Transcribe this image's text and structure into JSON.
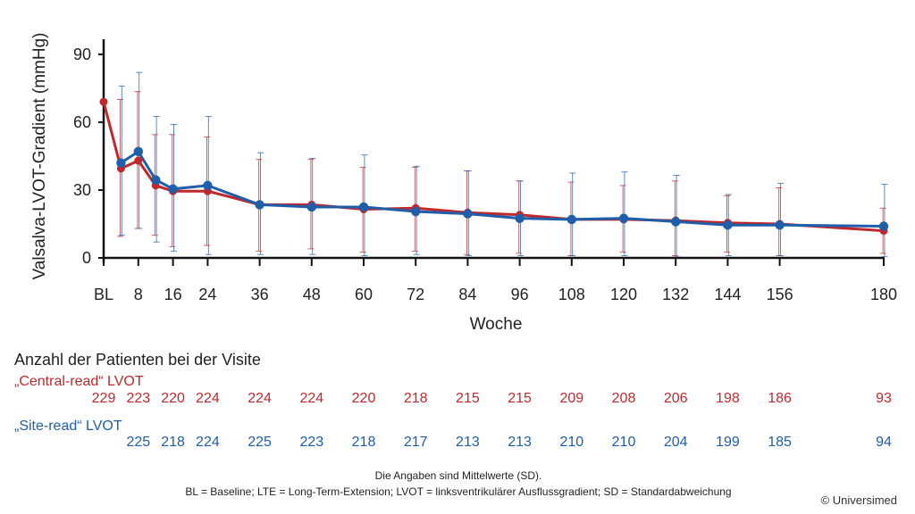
{
  "chart_data": {
    "type": "line",
    "xlabel": "Woche",
    "ylabel": "Valsalva-LVOT-Gradient (mmHg)",
    "ylim": [
      0,
      95
    ],
    "yticks": [
      0,
      30,
      60,
      90
    ],
    "xlim": [
      0,
      180
    ],
    "xticks": [
      {
        "value": 0,
        "label": "BL"
      },
      {
        "value": 8,
        "label": "8"
      },
      {
        "value": 16,
        "label": "16"
      },
      {
        "value": 24,
        "label": "24"
      },
      {
        "value": 36,
        "label": "36"
      },
      {
        "value": 48,
        "label": "48"
      },
      {
        "value": 60,
        "label": "60"
      },
      {
        "value": 72,
        "label": "72"
      },
      {
        "value": 84,
        "label": "84"
      },
      {
        "value": 96,
        "label": "96"
      },
      {
        "value": 108,
        "label": "108"
      },
      {
        "value": 120,
        "label": "120"
      },
      {
        "value": 132,
        "label": "132"
      },
      {
        "value": 144,
        "label": "144"
      },
      {
        "value": 156,
        "label": "156"
      },
      {
        "value": 180,
        "label": "180"
      }
    ],
    "grid": false,
    "series": [
      {
        "name": "„Central-read“ LVOT",
        "color": "#c0282d",
        "points": [
          {
            "x": 0,
            "y": 69,
            "lo": null,
            "hi": null
          },
          {
            "x": 4,
            "y": 39.5,
            "lo": 9.5,
            "hi": 70
          },
          {
            "x": 8,
            "y": 43,
            "lo": 13,
            "hi": 73.5
          },
          {
            "x": 12,
            "y": 32,
            "lo": 10,
            "hi": 54.5
          },
          {
            "x": 16,
            "y": 29.5,
            "lo": 5,
            "hi": 54.5
          },
          {
            "x": 24,
            "y": 29.5,
            "lo": 5.5,
            "hi": 53.5
          },
          {
            "x": 36,
            "y": 23.5,
            "lo": 3,
            "hi": 43.5
          },
          {
            "x": 48,
            "y": 23.5,
            "lo": 4,
            "hi": 43.5
          },
          {
            "x": 60,
            "y": 21.5,
            "lo": 2.5,
            "hi": 40
          },
          {
            "x": 72,
            "y": 22,
            "lo": 3,
            "hi": 40
          },
          {
            "x": 84,
            "y": 20,
            "lo": 1.5,
            "hi": 38.5
          },
          {
            "x": 96,
            "y": 19,
            "lo": 2,
            "hi": 34
          },
          {
            "x": 108,
            "y": 17,
            "lo": 1,
            "hi": 33.5
          },
          {
            "x": 120,
            "y": 17,
            "lo": 2.5,
            "hi": 32
          },
          {
            "x": 132,
            "y": 16.5,
            "lo": 1,
            "hi": 34
          },
          {
            "x": 144,
            "y": 15.5,
            "lo": 2.5,
            "hi": 27.5
          },
          {
            "x": 156,
            "y": 15,
            "lo": 1,
            "hi": 31
          },
          {
            "x": 180,
            "y": 12,
            "lo": 2,
            "hi": 22
          }
        ]
      },
      {
        "name": "„Site-read“ LVOT",
        "color": "#1f5ea8",
        "points": [
          {
            "x": 4,
            "y": 42,
            "lo": 10,
            "hi": 76
          },
          {
            "x": 8,
            "y": 47,
            "lo": 13,
            "hi": 82
          },
          {
            "x": 12,
            "y": 34.5,
            "lo": 7,
            "hi": 62.5
          },
          {
            "x": 16,
            "y": 30.5,
            "lo": 3,
            "hi": 59
          },
          {
            "x": 24,
            "y": 32,
            "lo": 1.5,
            "hi": 62.5
          },
          {
            "x": 36,
            "y": 23.5,
            "lo": 1.5,
            "hi": 46.5
          },
          {
            "x": 48,
            "y": 22.5,
            "lo": 1.5,
            "hi": 44
          },
          {
            "x": 60,
            "y": 22.5,
            "lo": 1,
            "hi": 45.5
          },
          {
            "x": 72,
            "y": 20.5,
            "lo": 1.5,
            "hi": 40.5
          },
          {
            "x": 84,
            "y": 19.5,
            "lo": 1,
            "hi": 38.5
          },
          {
            "x": 96,
            "y": 17.5,
            "lo": 1,
            "hi": 34
          },
          {
            "x": 108,
            "y": 17,
            "lo": 1,
            "hi": 37.5
          },
          {
            "x": 120,
            "y": 17.5,
            "lo": 1,
            "hi": 38
          },
          {
            "x": 132,
            "y": 16,
            "lo": 0.5,
            "hi": 36.5
          },
          {
            "x": 144,
            "y": 14.5,
            "lo": 1,
            "hi": 28
          },
          {
            "x": 156,
            "y": 14.5,
            "lo": 1,
            "hi": 33
          },
          {
            "x": 180,
            "y": 14,
            "lo": 0.5,
            "hi": 32.5
          }
        ]
      }
    ]
  },
  "patients": {
    "title": "Anzahl der Patienten bei der Visite",
    "rows": [
      {
        "label": "„Central-read“ LVOT",
        "color": "#c0282d",
        "cells": [
          {
            "x": 0,
            "v": "229"
          },
          {
            "x": 8,
            "v": "223"
          },
          {
            "x": 16,
            "v": "220"
          },
          {
            "x": 24,
            "v": "224"
          },
          {
            "x": 36,
            "v": "224"
          },
          {
            "x": 48,
            "v": "224"
          },
          {
            "x": 60,
            "v": "220"
          },
          {
            "x": 72,
            "v": "218"
          },
          {
            "x": 84,
            "v": "215"
          },
          {
            "x": 96,
            "v": "215"
          },
          {
            "x": 108,
            "v": "209"
          },
          {
            "x": 120,
            "v": "208"
          },
          {
            "x": 132,
            "v": "206"
          },
          {
            "x": 144,
            "v": "198"
          },
          {
            "x": 156,
            "v": "186"
          },
          {
            "x": 180,
            "v": "93"
          }
        ]
      },
      {
        "label": "„Site-read“ LVOT",
        "color": "#1f5ea8",
        "cells": [
          {
            "x": 8,
            "v": "225"
          },
          {
            "x": 16,
            "v": "218"
          },
          {
            "x": 24,
            "v": "224"
          },
          {
            "x": 36,
            "v": "225"
          },
          {
            "x": 48,
            "v": "223"
          },
          {
            "x": 60,
            "v": "218"
          },
          {
            "x": 72,
            "v": "217"
          },
          {
            "x": 84,
            "v": "213"
          },
          {
            "x": 96,
            "v": "213"
          },
          {
            "x": 108,
            "v": "210"
          },
          {
            "x": 120,
            "v": "210"
          },
          {
            "x": 132,
            "v": "204"
          },
          {
            "x": 144,
            "v": "199"
          },
          {
            "x": 156,
            "v": "185"
          },
          {
            "x": 180,
            "v": "94"
          }
        ]
      }
    ]
  },
  "footnotes": {
    "line1": "Die Angaben sind Mittelwerte (SD).",
    "line2": "BL = Baseline; LTE = Long-Term-Extension; LVOT = linksventrikulärer Ausflussgradient; SD = Standardabweichung"
  },
  "copyright": "© Universimed",
  "colors": {
    "axis": "#111111",
    "text": "#222222"
  }
}
